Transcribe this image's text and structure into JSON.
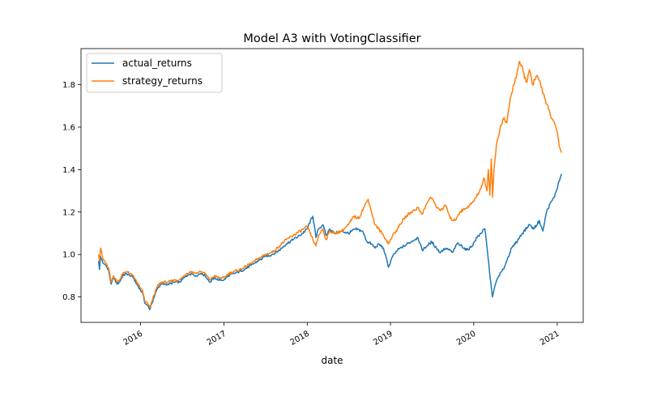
{
  "chart_data": {
    "type": "line",
    "title": "Model A3 with VotingClassifier",
    "xlabel": "date",
    "ylabel": "",
    "xlim": [
      "2015-04-15",
      "2021-04-25"
    ],
    "ylim": [
      0.68,
      1.97
    ],
    "x_ticks": [
      {
        "date": "2016-01-01",
        "label": "2016"
      },
      {
        "date": "2017-01-01",
        "label": "2017"
      },
      {
        "date": "2018-01-01",
        "label": "2018"
      },
      {
        "date": "2019-01-01",
        "label": "2019"
      },
      {
        "date": "2020-01-01",
        "label": "2020"
      },
      {
        "date": "2021-01-01",
        "label": "2021"
      }
    ],
    "y_ticks": [
      {
        "value": 0.8,
        "label": "0.8"
      },
      {
        "value": 1.0,
        "label": "1.0"
      },
      {
        "value": 1.2,
        "label": "1.2"
      },
      {
        "value": 1.4,
        "label": "1.4"
      },
      {
        "value": 1.6,
        "label": "1.6"
      },
      {
        "value": 1.8,
        "label": "1.8"
      }
    ],
    "grid": false,
    "legend_position": "top-left",
    "series": [
      {
        "name": "actual_returns",
        "color": "#1f77b4",
        "points": [
          [
            "2015-07-01",
            0.97
          ],
          [
            "2015-07-05",
            0.93
          ],
          [
            "2015-07-10",
            0.99
          ],
          [
            "2015-07-20",
            0.96
          ],
          [
            "2015-08-01",
            0.95
          ],
          [
            "2015-08-15",
            0.92
          ],
          [
            "2015-08-25",
            0.86
          ],
          [
            "2015-09-05",
            0.89
          ],
          [
            "2015-09-20",
            0.86
          ],
          [
            "2015-10-01",
            0.87
          ],
          [
            "2015-10-15",
            0.9
          ],
          [
            "2015-11-01",
            0.91
          ],
          [
            "2015-11-15",
            0.9
          ],
          [
            "2015-12-01",
            0.89
          ],
          [
            "2015-12-15",
            0.86
          ],
          [
            "2016-01-01",
            0.83
          ],
          [
            "2016-01-10",
            0.82
          ],
          [
            "2016-01-20",
            0.77
          ],
          [
            "2016-02-01",
            0.76
          ],
          [
            "2016-02-11",
            0.74
          ],
          [
            "2016-02-20",
            0.77
          ],
          [
            "2016-03-01",
            0.8
          ],
          [
            "2016-03-15",
            0.84
          ],
          [
            "2016-04-01",
            0.86
          ],
          [
            "2016-05-01",
            0.86
          ],
          [
            "2016-06-01",
            0.87
          ],
          [
            "2016-06-20",
            0.87
          ],
          [
            "2016-07-01",
            0.88
          ],
          [
            "2016-07-20",
            0.9
          ],
          [
            "2016-08-10",
            0.91
          ],
          [
            "2016-09-01",
            0.9
          ],
          [
            "2016-09-20",
            0.91
          ],
          [
            "2016-10-10",
            0.9
          ],
          [
            "2016-11-01",
            0.87
          ],
          [
            "2016-11-20",
            0.89
          ],
          [
            "2016-12-10",
            0.88
          ],
          [
            "2017-01-01",
            0.88
          ],
          [
            "2017-01-20",
            0.9
          ],
          [
            "2017-02-15",
            0.91
          ],
          [
            "2017-03-10",
            0.92
          ],
          [
            "2017-04-01",
            0.93
          ],
          [
            "2017-05-01",
            0.95
          ],
          [
            "2017-06-01",
            0.97
          ],
          [
            "2017-07-01",
            0.99
          ],
          [
            "2017-08-01",
            1.0
          ],
          [
            "2017-09-01",
            1.02
          ],
          [
            "2017-10-01",
            1.05
          ],
          [
            "2017-11-01",
            1.07
          ],
          [
            "2017-12-01",
            1.09
          ],
          [
            "2018-01-01",
            1.12
          ],
          [
            "2018-01-15",
            1.16
          ],
          [
            "2018-01-26",
            1.18
          ],
          [
            "2018-02-08",
            1.08
          ],
          [
            "2018-02-20",
            1.12
          ],
          [
            "2018-03-10",
            1.14
          ],
          [
            "2018-03-25",
            1.09
          ],
          [
            "2018-04-10",
            1.12
          ],
          [
            "2018-05-01",
            1.1
          ],
          [
            "2018-06-01",
            1.11
          ],
          [
            "2018-07-01",
            1.1
          ],
          [
            "2018-08-01",
            1.12
          ],
          [
            "2018-09-01",
            1.11
          ],
          [
            "2018-09-20",
            1.06
          ],
          [
            "2018-10-10",
            1.05
          ],
          [
            "2018-10-25",
            1.03
          ],
          [
            "2018-11-10",
            1.05
          ],
          [
            "2018-12-01",
            1.03
          ],
          [
            "2018-12-24",
            0.94
          ],
          [
            "2019-01-10",
            0.99
          ],
          [
            "2019-02-01",
            1.02
          ],
          [
            "2019-03-01",
            1.04
          ],
          [
            "2019-04-01",
            1.06
          ],
          [
            "2019-05-01",
            1.08
          ],
          [
            "2019-05-20",
            1.02
          ],
          [
            "2019-06-10",
            1.04
          ],
          [
            "2019-07-01",
            1.06
          ],
          [
            "2019-08-05",
            1.01
          ],
          [
            "2019-09-01",
            1.03
          ],
          [
            "2019-10-01",
            1.01
          ],
          [
            "2019-10-20",
            1.05
          ],
          [
            "2019-11-10",
            1.04
          ],
          [
            "2019-12-01",
            1.02
          ],
          [
            "2019-12-25",
            1.04
          ],
          [
            "2020-01-15",
            1.08
          ],
          [
            "2020-02-01",
            1.1
          ],
          [
            "2020-02-19",
            1.12
          ],
          [
            "2020-03-01",
            1.02
          ],
          [
            "2020-03-10",
            0.92
          ],
          [
            "2020-03-23",
            0.8
          ],
          [
            "2020-04-05",
            0.86
          ],
          [
            "2020-04-20",
            0.9
          ],
          [
            "2020-05-10",
            0.93
          ],
          [
            "2020-06-01",
            0.99
          ],
          [
            "2020-06-15",
            1.03
          ],
          [
            "2020-07-01",
            1.05
          ],
          [
            "2020-08-01",
            1.1
          ],
          [
            "2020-09-01",
            1.14
          ],
          [
            "2020-09-20",
            1.12
          ],
          [
            "2020-10-15",
            1.16
          ],
          [
            "2020-10-30",
            1.11
          ],
          [
            "2020-11-15",
            1.2
          ],
          [
            "2020-12-01",
            1.24
          ],
          [
            "2020-12-20",
            1.27
          ],
          [
            "2021-01-05",
            1.33
          ],
          [
            "2021-01-20",
            1.38
          ]
        ]
      },
      {
        "name": "strategy_returns",
        "color": "#ff7f0e",
        "points": [
          [
            "2015-07-01",
            1.0
          ],
          [
            "2015-07-05",
            0.97
          ],
          [
            "2015-07-10",
            1.03
          ],
          [
            "2015-07-20",
            0.98
          ],
          [
            "2015-08-01",
            0.96
          ],
          [
            "2015-08-15",
            0.93
          ],
          [
            "2015-08-25",
            0.87
          ],
          [
            "2015-09-05",
            0.9
          ],
          [
            "2015-09-20",
            0.87
          ],
          [
            "2015-10-01",
            0.88
          ],
          [
            "2015-10-15",
            0.91
          ],
          [
            "2015-11-01",
            0.92
          ],
          [
            "2015-11-15",
            0.91
          ],
          [
            "2015-12-01",
            0.9
          ],
          [
            "2015-12-15",
            0.87
          ],
          [
            "2016-01-01",
            0.84
          ],
          [
            "2016-01-10",
            0.83
          ],
          [
            "2016-01-20",
            0.78
          ],
          [
            "2016-02-01",
            0.77
          ],
          [
            "2016-02-11",
            0.75
          ],
          [
            "2016-02-20",
            0.78
          ],
          [
            "2016-03-01",
            0.81
          ],
          [
            "2016-03-15",
            0.85
          ],
          [
            "2016-04-01",
            0.87
          ],
          [
            "2016-05-01",
            0.87
          ],
          [
            "2016-06-01",
            0.88
          ],
          [
            "2016-06-20",
            0.88
          ],
          [
            "2016-07-01",
            0.89
          ],
          [
            "2016-07-20",
            0.91
          ],
          [
            "2016-08-10",
            0.92
          ],
          [
            "2016-09-01",
            0.91
          ],
          [
            "2016-09-20",
            0.92
          ],
          [
            "2016-10-10",
            0.91
          ],
          [
            "2016-11-01",
            0.88
          ],
          [
            "2016-11-20",
            0.9
          ],
          [
            "2016-12-10",
            0.89
          ],
          [
            "2017-01-01",
            0.89
          ],
          [
            "2017-01-20",
            0.91
          ],
          [
            "2017-02-15",
            0.92
          ],
          [
            "2017-03-10",
            0.93
          ],
          [
            "2017-04-01",
            0.94
          ],
          [
            "2017-05-01",
            0.96
          ],
          [
            "2017-06-01",
            0.98
          ],
          [
            "2017-07-01",
            1.0
          ],
          [
            "2017-08-01",
            1.01
          ],
          [
            "2017-09-01",
            1.04
          ],
          [
            "2017-10-01",
            1.07
          ],
          [
            "2017-11-01",
            1.09
          ],
          [
            "2017-12-01",
            1.11
          ],
          [
            "2018-01-01",
            1.13
          ],
          [
            "2018-01-15",
            1.1
          ],
          [
            "2018-01-26",
            1.07
          ],
          [
            "2018-02-08",
            1.04
          ],
          [
            "2018-02-20",
            1.09
          ],
          [
            "2018-03-10",
            1.12
          ],
          [
            "2018-03-25",
            1.07
          ],
          [
            "2018-04-10",
            1.11
          ],
          [
            "2018-05-01",
            1.1
          ],
          [
            "2018-06-01",
            1.11
          ],
          [
            "2018-07-01",
            1.14
          ],
          [
            "2018-07-25",
            1.18
          ],
          [
            "2018-08-15",
            1.17
          ],
          [
            "2018-09-05",
            1.22
          ],
          [
            "2018-09-25",
            1.26
          ],
          [
            "2018-10-10",
            1.2
          ],
          [
            "2018-10-25",
            1.14
          ],
          [
            "2018-11-10",
            1.12
          ],
          [
            "2018-12-01",
            1.09
          ],
          [
            "2018-12-24",
            1.05
          ],
          [
            "2019-01-10",
            1.09
          ],
          [
            "2019-02-01",
            1.12
          ],
          [
            "2019-03-01",
            1.17
          ],
          [
            "2019-04-01",
            1.2
          ],
          [
            "2019-05-01",
            1.22
          ],
          [
            "2019-05-20",
            1.19
          ],
          [
            "2019-06-10",
            1.24
          ],
          [
            "2019-06-25",
            1.27
          ],
          [
            "2019-07-10",
            1.25
          ],
          [
            "2019-07-25",
            1.22
          ],
          [
            "2019-08-10",
            1.21
          ],
          [
            "2019-09-01",
            1.23
          ],
          [
            "2019-09-20",
            1.17
          ],
          [
            "2019-10-10",
            1.16
          ],
          [
            "2019-11-01",
            1.2
          ],
          [
            "2019-12-01",
            1.22
          ],
          [
            "2020-01-01",
            1.25
          ],
          [
            "2020-02-01",
            1.31
          ],
          [
            "2020-02-15",
            1.36
          ],
          [
            "2020-02-28",
            1.3
          ],
          [
            "2020-03-05",
            1.4
          ],
          [
            "2020-03-12",
            1.28
          ],
          [
            "2020-03-18",
            1.45
          ],
          [
            "2020-03-24",
            1.27
          ],
          [
            "2020-03-30",
            1.4
          ],
          [
            "2020-04-10",
            1.52
          ],
          [
            "2020-04-25",
            1.59
          ],
          [
            "2020-05-10",
            1.64
          ],
          [
            "2020-05-25",
            1.62
          ],
          [
            "2020-06-10",
            1.74
          ],
          [
            "2020-06-25",
            1.8
          ],
          [
            "2020-07-10",
            1.86
          ],
          [
            "2020-07-20",
            1.91
          ],
          [
            "2020-08-05",
            1.86
          ],
          [
            "2020-08-20",
            1.81
          ],
          [
            "2020-09-01",
            1.87
          ],
          [
            "2020-09-15",
            1.8
          ],
          [
            "2020-10-01",
            1.84
          ],
          [
            "2020-10-15",
            1.82
          ],
          [
            "2020-11-01",
            1.76
          ],
          [
            "2020-11-15",
            1.71
          ],
          [
            "2020-12-01",
            1.66
          ],
          [
            "2020-12-15",
            1.63
          ],
          [
            "2021-01-01",
            1.58
          ],
          [
            "2021-01-10",
            1.51
          ],
          [
            "2021-01-20",
            1.48
          ]
        ]
      }
    ]
  }
}
